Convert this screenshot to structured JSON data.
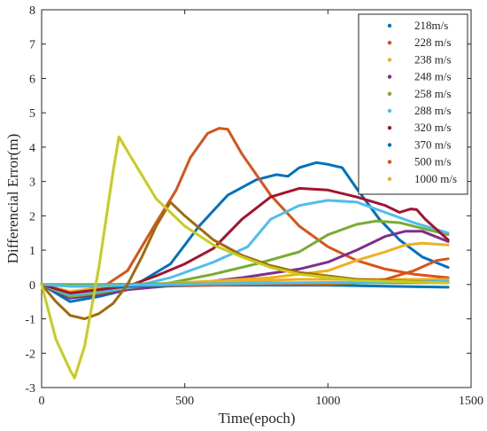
{
  "chart_data": {
    "type": "line",
    "xlabel": "Time(epoch)",
    "ylabel": "Differencial Error(m)",
    "xlim": [
      0,
      1500
    ],
    "ylim": [
      -3,
      8
    ],
    "xticks": [
      0,
      500,
      1000,
      1500
    ],
    "yticks": [
      -3,
      -2,
      -1,
      0,
      1,
      2,
      3,
      4,
      5,
      6,
      7,
      8
    ],
    "grid": false,
    "legend_position": "top-right",
    "series": [
      {
        "name": "218m/s",
        "color": "#0072BD",
        "points": [
          [
            0,
            0
          ],
          [
            100,
            -0.5
          ],
          [
            200,
            -0.35
          ],
          [
            300,
            -0.15
          ],
          [
            450,
            0.6
          ],
          [
            550,
            1.7
          ],
          [
            650,
            2.6
          ],
          [
            750,
            3.05
          ],
          [
            820,
            3.2
          ],
          [
            860,
            3.15
          ],
          [
            900,
            3.4
          ],
          [
            960,
            3.55
          ],
          [
            1000,
            3.5
          ],
          [
            1050,
            3.4
          ],
          [
            1100,
            2.8
          ],
          [
            1180,
            1.9
          ],
          [
            1250,
            1.3
          ],
          [
            1330,
            0.8
          ],
          [
            1420,
            0.5
          ]
        ]
      },
      {
        "name": "228 m/s",
        "color": "#D95319",
        "points": [
          [
            0,
            0
          ],
          [
            100,
            -0.3
          ],
          [
            200,
            -0.15
          ],
          [
            300,
            0.4
          ],
          [
            400,
            1.8
          ],
          [
            470,
            2.75
          ],
          [
            520,
            3.7
          ],
          [
            580,
            4.4
          ],
          [
            620,
            4.55
          ],
          [
            650,
            4.52
          ],
          [
            700,
            3.8
          ],
          [
            800,
            2.6
          ],
          [
            900,
            1.7
          ],
          [
            1000,
            1.1
          ],
          [
            1100,
            0.7
          ],
          [
            1200,
            0.45
          ],
          [
            1300,
            0.3
          ],
          [
            1420,
            0.2
          ]
        ]
      },
      {
        "name": "238 m/s",
        "color": "#EDB120",
        "points": [
          [
            0,
            0
          ],
          [
            100,
            -0.2
          ],
          [
            200,
            -0.1
          ],
          [
            300,
            -0.05
          ],
          [
            500,
            0.05
          ],
          [
            700,
            0.1
          ],
          [
            900,
            0.15
          ],
          [
            1100,
            0.15
          ],
          [
            1300,
            0.15
          ],
          [
            1420,
            0.15
          ]
        ]
      },
      {
        "name": "248 m/s",
        "color": "#7E2F8E",
        "points": [
          [
            0,
            0
          ],
          [
            100,
            -0.4
          ],
          [
            200,
            -0.3
          ],
          [
            300,
            -0.15
          ],
          [
            500,
            0.0
          ],
          [
            700,
            0.2
          ],
          [
            900,
            0.45
          ],
          [
            1000,
            0.65
          ],
          [
            1100,
            1.0
          ],
          [
            1200,
            1.4
          ],
          [
            1270,
            1.55
          ],
          [
            1330,
            1.55
          ],
          [
            1420,
            1.25
          ]
        ]
      },
      {
        "name": "258 m/s",
        "color": "#77AC30",
        "points": [
          [
            0,
            0
          ],
          [
            100,
            -0.35
          ],
          [
            200,
            -0.25
          ],
          [
            300,
            -0.1
          ],
          [
            450,
            0.05
          ],
          [
            600,
            0.3
          ],
          [
            750,
            0.6
          ],
          [
            900,
            0.95
          ],
          [
            1000,
            1.45
          ],
          [
            1100,
            1.75
          ],
          [
            1170,
            1.85
          ],
          [
            1250,
            1.8
          ],
          [
            1420,
            1.45
          ]
        ]
      },
      {
        "name": "288 m/s",
        "color": "#4DBEEE",
        "points": [
          [
            0,
            0
          ],
          [
            100,
            -0.3
          ],
          [
            200,
            -0.2
          ],
          [
            300,
            -0.1
          ],
          [
            450,
            0.2
          ],
          [
            600,
            0.65
          ],
          [
            720,
            1.1
          ],
          [
            800,
            1.9
          ],
          [
            900,
            2.3
          ],
          [
            1000,
            2.45
          ],
          [
            1100,
            2.4
          ],
          [
            1200,
            2.1
          ],
          [
            1300,
            1.8
          ],
          [
            1420,
            1.5
          ]
        ]
      },
      {
        "name": "320 m/s",
        "color": "#A2142F",
        "points": [
          [
            0,
            0
          ],
          [
            100,
            -0.25
          ],
          [
            200,
            -0.15
          ],
          [
            300,
            -0.05
          ],
          [
            400,
            0.25
          ],
          [
            500,
            0.6
          ],
          [
            600,
            1.05
          ],
          [
            700,
            1.9
          ],
          [
            800,
            2.55
          ],
          [
            900,
            2.8
          ],
          [
            1000,
            2.75
          ],
          [
            1100,
            2.55
          ],
          [
            1200,
            2.3
          ],
          [
            1250,
            2.1
          ],
          [
            1290,
            2.2
          ],
          [
            1310,
            2.18
          ],
          [
            1340,
            1.9
          ],
          [
            1420,
            1.3
          ]
        ]
      },
      {
        "name": "370 m/s",
        "color": "#0072BD",
        "points": [
          [
            0,
            0
          ],
          [
            100,
            -0.05
          ],
          [
            200,
            -0.05
          ],
          [
            400,
            -0.05
          ],
          [
            600,
            -0.02
          ],
          [
            800,
            -0.02
          ],
          [
            1000,
            -0.02
          ],
          [
            1200,
            -0.05
          ],
          [
            1420,
            -0.08
          ]
        ]
      },
      {
        "name": "500 m/s",
        "color": "#D95319",
        "points": [
          [
            0,
            0
          ],
          [
            200,
            -0.02
          ],
          [
            400,
            -0.02
          ],
          [
            600,
            -0.02
          ],
          [
            800,
            0.0
          ],
          [
            1000,
            0.0
          ],
          [
            1100,
            0.05
          ],
          [
            1200,
            0.15
          ],
          [
            1300,
            0.4
          ],
          [
            1380,
            0.7
          ],
          [
            1420,
            0.75
          ]
        ]
      },
      {
        "name": "1000 m/s",
        "color": "#EDB120",
        "points": [
          [
            0,
            0
          ],
          [
            200,
            -0.05
          ],
          [
            400,
            0.02
          ],
          [
            600,
            0.1
          ],
          [
            800,
            0.2
          ],
          [
            1000,
            0.4
          ],
          [
            1100,
            0.7
          ],
          [
            1200,
            0.95
          ],
          [
            1270,
            1.15
          ],
          [
            1330,
            1.2
          ],
          [
            1420,
            1.15
          ]
        ]
      },
      {
        "color": "#77AC30",
        "points": [
          [
            0,
            0
          ],
          [
            200,
            0.0
          ],
          [
            400,
            0.02
          ],
          [
            600,
            0.02
          ],
          [
            800,
            0.05
          ],
          [
            1000,
            0.05
          ],
          [
            1200,
            0.05
          ],
          [
            1420,
            0.05
          ]
        ]
      },
      {
        "color": "#4DBEEE",
        "points": [
          [
            0,
            0
          ],
          [
            100,
            -0.05
          ],
          [
            300,
            -0.02
          ],
          [
            600,
            0.02
          ],
          [
            900,
            0.05
          ],
          [
            1200,
            0.08
          ],
          [
            1420,
            0.1
          ]
        ]
      },
      {
        "color": "#A2690F",
        "points": [
          [
            0,
            0
          ],
          [
            50,
            -0.5
          ],
          [
            100,
            -0.9
          ],
          [
            150,
            -1.0
          ],
          [
            200,
            -0.85
          ],
          [
            250,
            -0.55
          ],
          [
            300,
            0.0
          ],
          [
            350,
            0.8
          ],
          [
            400,
            1.7
          ],
          [
            450,
            2.4
          ],
          [
            500,
            2.0
          ],
          [
            600,
            1.3
          ],
          [
            700,
            0.85
          ],
          [
            800,
            0.55
          ],
          [
            900,
            0.35
          ],
          [
            1100,
            0.15
          ],
          [
            1420,
            0.05
          ]
        ]
      },
      {
        "color": "#C8CC1C",
        "points": [
          [
            0,
            0
          ],
          [
            50,
            -1.6
          ],
          [
            100,
            -2.5
          ],
          [
            115,
            -2.72
          ],
          [
            150,
            -1.8
          ],
          [
            200,
            0.5
          ],
          [
            250,
            3.3
          ],
          [
            270,
            4.3
          ],
          [
            320,
            3.6
          ],
          [
            400,
            2.5
          ],
          [
            500,
            1.7
          ],
          [
            600,
            1.15
          ],
          [
            700,
            0.8
          ],
          [
            800,
            0.5
          ],
          [
            900,
            0.3
          ],
          [
            1100,
            0.12
          ],
          [
            1420,
            0.05
          ]
        ]
      }
    ]
  }
}
